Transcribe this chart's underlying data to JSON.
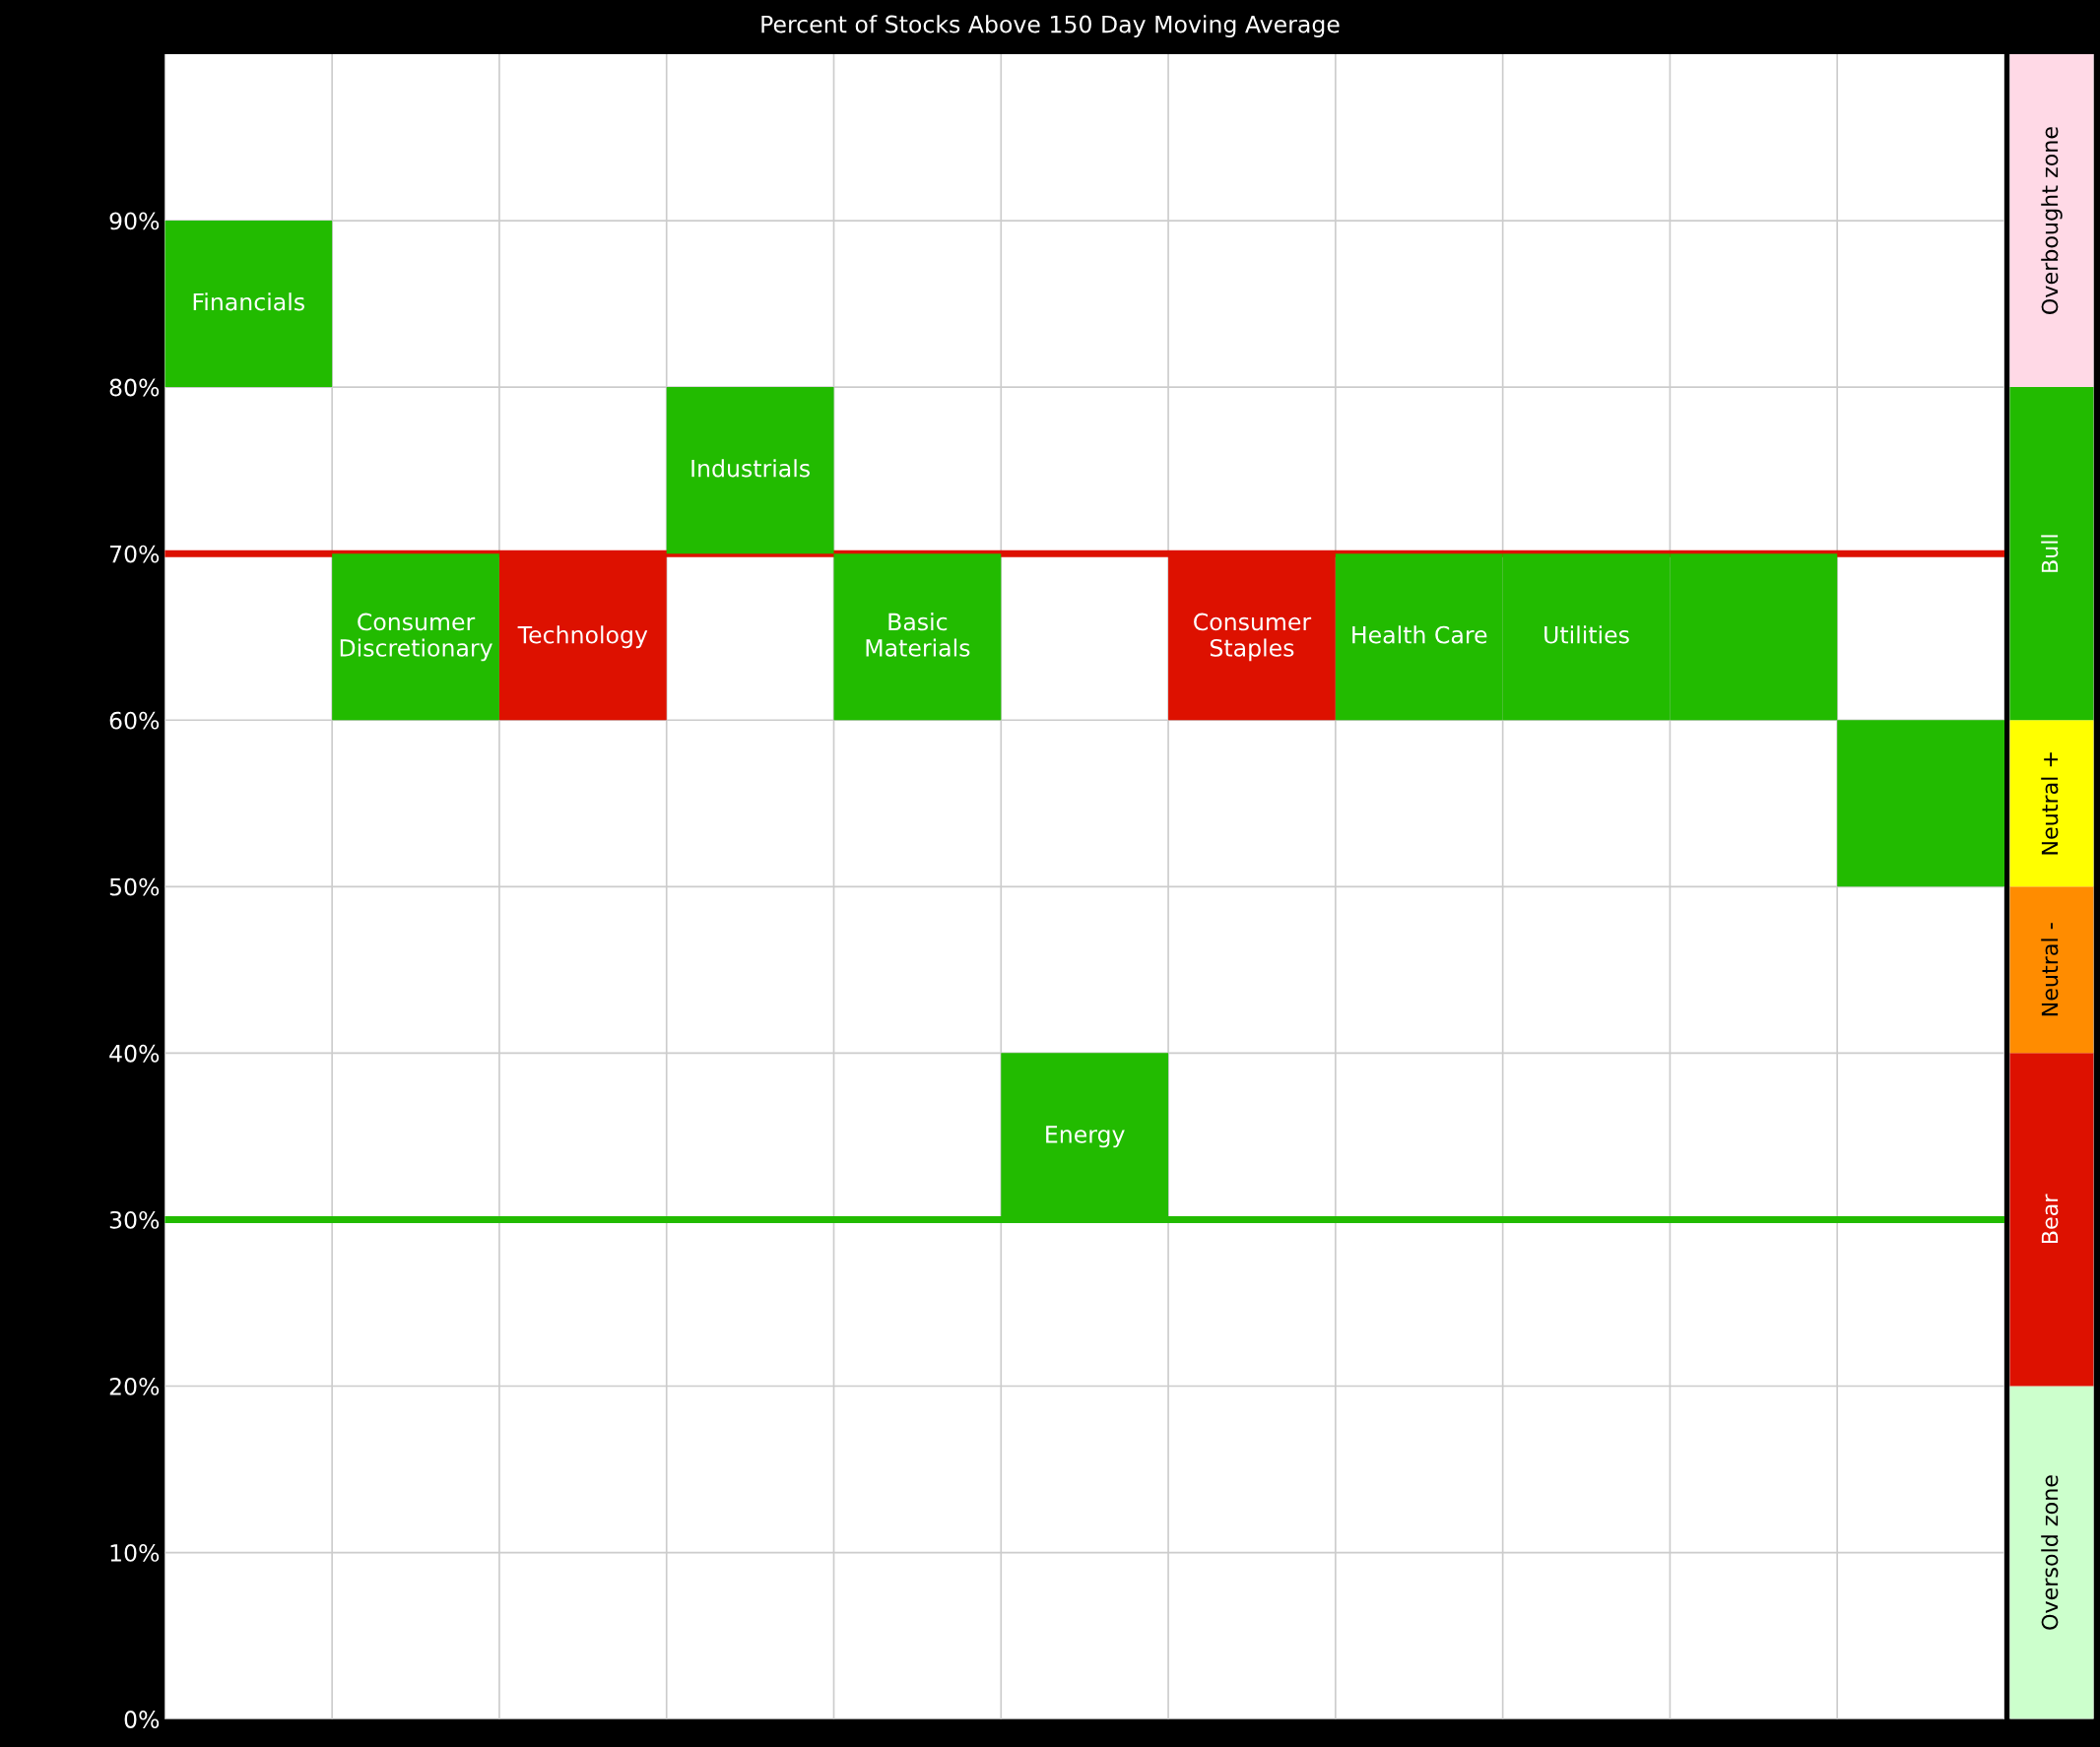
{
  "chart_data": [
    {
      "type": "bar",
      "title": "Percent of Stocks Above 150 Day Moving Average",
      "categories": [
        "Financials",
        "Consumer\nDiscretionary",
        "Technology",
        "Industrials",
        "Basic\nMaterials",
        "Energy",
        "Consumer\nStaples",
        "Health Care",
        "Utilities",
        null,
        null
      ],
      "values": [
        10,
        10,
        10,
        10,
        10,
        10,
        10,
        10,
        10,
        10,
        10
      ],
      "base": [
        80,
        60,
        60,
        70,
        60,
        30,
        60,
        60,
        60,
        60,
        50
      ],
      "colors": [
        "#22bb00",
        "#22bb00",
        "#dd1100",
        "#22bb00",
        "#22bb00",
        "#22bb00",
        "#dd1100",
        "#22bb00",
        "#22bb00",
        "#22bb00",
        "#22bb00"
      ],
      "ylim": [
        0,
        100
      ],
      "yticks": [
        {
          "value": 0,
          "label": "0%"
        },
        {
          "value": 10,
          "label": "10%"
        },
        {
          "value": 20,
          "label": "20%"
        },
        {
          "value": 30,
          "label": "30%"
        },
        {
          "value": 40,
          "label": "40%"
        },
        {
          "value": 50,
          "label": "50%"
        },
        {
          "value": 60,
          "label": "60%"
        },
        {
          "value": 70,
          "label": "70%"
        },
        {
          "value": 80,
          "label": "80%"
        },
        {
          "value": 90,
          "label": "90%"
        }
      ],
      "tick_labels": "y",
      "grid": true,
      "ref_lines": [
        {
          "axis": "y",
          "value": 70,
          "color": "#dd1100"
        },
        {
          "axis": "y",
          "value": 30,
          "color": "#22bb00"
        }
      ]
    },
    {
      "type": "bar",
      "stacked": true,
      "categories": [
        null
      ],
      "ylim": [
        0,
        100
      ],
      "tick_labels": false,
      "series": [
        {
          "name": "Oversold zone",
          "color": "#ccffcc",
          "values": [
            20
          ]
        },
        {
          "name": "Bear",
          "color": "#dd1100",
          "values": [
            20
          ]
        },
        {
          "name": "Neutral -",
          "color": "#ff8c00",
          "values": [
            10
          ]
        },
        {
          "name": "Neutral +",
          "color": "#ffff00",
          "values": [
            10
          ]
        },
        {
          "name": "Bull",
          "color": "#22bb00",
          "values": [
            20
          ]
        },
        {
          "name": "Overbought zone",
          "color": "#ffd9e6",
          "values": [
            20
          ]
        }
      ]
    }
  ]
}
